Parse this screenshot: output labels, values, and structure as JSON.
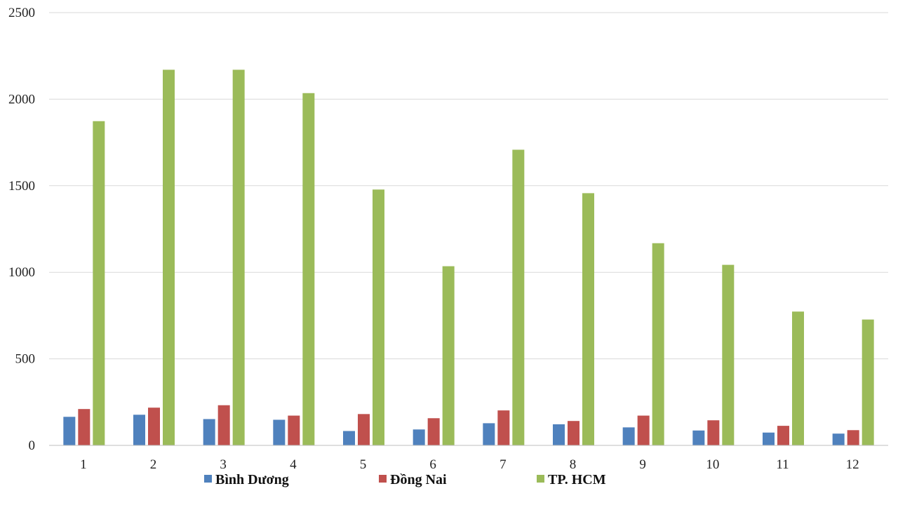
{
  "chart_data": {
    "type": "bar",
    "categories": [
      "1",
      "2",
      "3",
      "4",
      "5",
      "6",
      "7",
      "8",
      "9",
      "10",
      "11",
      "12"
    ],
    "series": [
      {
        "name": "Bình Dương",
        "color": "#4f81bd",
        "values": [
          165,
          177,
          152,
          148,
          83,
          92,
          128,
          122,
          104,
          86,
          74,
          68
        ]
      },
      {
        "name": "Đồng Nai",
        "color": "#c0504d",
        "values": [
          210,
          218,
          232,
          172,
          181,
          157,
          202,
          141,
          172,
          145,
          113,
          88
        ]
      },
      {
        "name": "TP. HCM",
        "color": "#9bbb59",
        "values": [
          1873,
          2170,
          2170,
          2035,
          1478,
          1035,
          1708,
          1457,
          1168,
          1043,
          773,
          727
        ]
      }
    ],
    "yticks": [
      "0",
      "500",
      "1000",
      "1500",
      "2000",
      "2500"
    ],
    "ylim": [
      0,
      2500
    ],
    "grid": true,
    "gridline_color": "#d9d9d9",
    "legend_position": "bottom"
  }
}
